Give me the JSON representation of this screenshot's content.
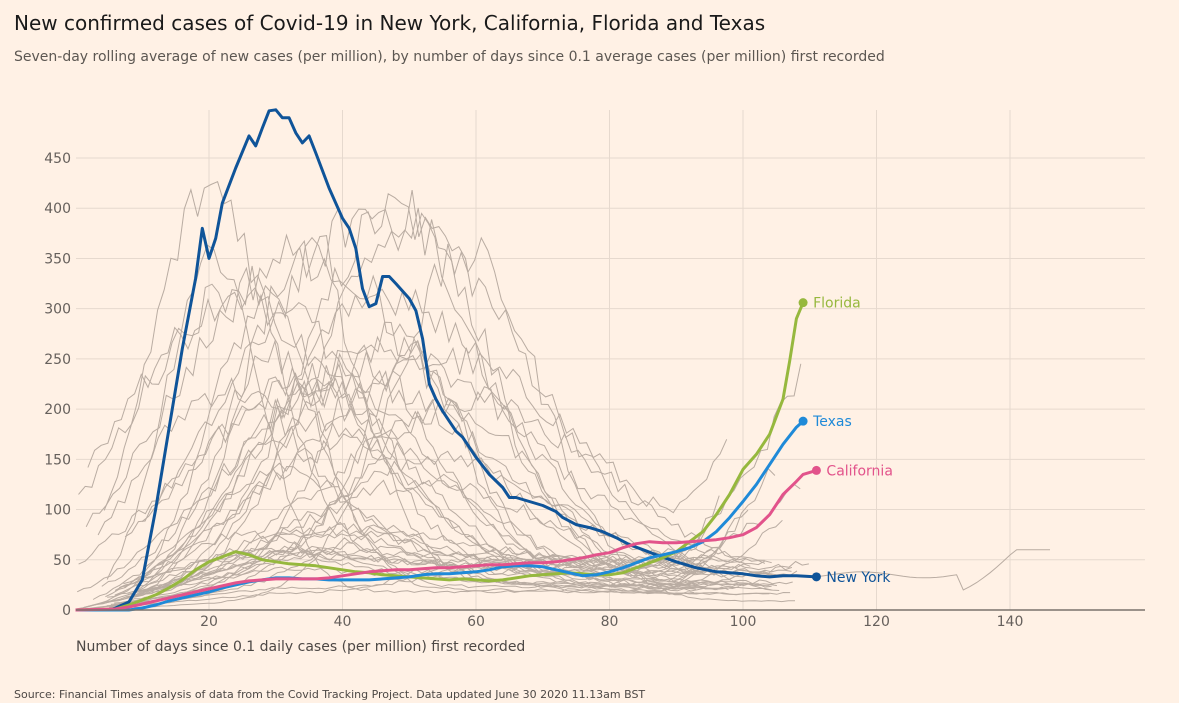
{
  "title": "New confirmed cases of Covid-19 in New York, California, Florida and Texas",
  "subtitle": "Seven-day rolling average of new cases (per million), by number of days since 0.1 average cases (per million) first recorded",
  "source": "Source: Financial Times analysis of data from the Covid Tracking Project. Data updated June 30 2020 11.13am BST",
  "chart_data": {
    "type": "line",
    "title": "New confirmed cases of Covid-19 in New York, California, Florida and Texas",
    "xlabel": "Number of days since 0.1 daily cases (per million) first recorded",
    "ylabel": "",
    "xlim": [
      0,
      160
    ],
    "ylim": [
      0,
      500
    ],
    "x_ticks": [
      "20",
      "40",
      "60",
      "80",
      "100",
      "120",
      "140"
    ],
    "x_tick_values": [
      20,
      40,
      60,
      80,
      100,
      120,
      140
    ],
    "y_ticks": [
      "0",
      "50",
      "100",
      "150",
      "200",
      "250",
      "300",
      "350",
      "400",
      "450"
    ],
    "y_tick_values": [
      0,
      50,
      100,
      150,
      200,
      250,
      300,
      350,
      400,
      450
    ],
    "grid": true,
    "series": [
      {
        "name": "New York",
        "color": "#0f5499",
        "label_dy": 0,
        "points": [
          [
            0,
            0
          ],
          [
            5,
            0
          ],
          [
            6,
            2
          ],
          [
            8,
            8
          ],
          [
            10,
            30
          ],
          [
            12,
            100
          ],
          [
            14,
            180
          ],
          [
            16,
            260
          ],
          [
            18,
            330
          ],
          [
            19,
            380
          ],
          [
            20,
            350
          ],
          [
            21,
            370
          ],
          [
            22,
            405
          ],
          [
            24,
            440
          ],
          [
            26,
            472
          ],
          [
            27,
            462
          ],
          [
            28,
            480
          ],
          [
            29,
            497
          ],
          [
            30,
            498
          ],
          [
            31,
            490
          ],
          [
            32,
            490
          ],
          [
            33,
            475
          ],
          [
            34,
            465
          ],
          [
            35,
            472
          ],
          [
            36,
            455
          ],
          [
            38,
            420
          ],
          [
            40,
            390
          ],
          [
            41,
            380
          ],
          [
            42,
            360
          ],
          [
            43,
            320
          ],
          [
            44,
            302
          ],
          [
            45,
            305
          ],
          [
            46,
            332
          ],
          [
            47,
            332
          ],
          [
            48,
            325
          ],
          [
            50,
            310
          ],
          [
            51,
            298
          ],
          [
            52,
            270
          ],
          [
            53,
            225
          ],
          [
            54,
            210
          ],
          [
            55,
            198
          ],
          [
            56,
            188
          ],
          [
            57,
            178
          ],
          [
            58,
            172
          ],
          [
            60,
            152
          ],
          [
            62,
            135
          ],
          [
            64,
            122
          ],
          [
            65,
            112
          ],
          [
            66,
            112
          ],
          [
            68,
            108
          ],
          [
            70,
            104
          ],
          [
            72,
            98
          ],
          [
            73,
            92
          ],
          [
            75,
            85
          ],
          [
            77,
            82
          ],
          [
            79,
            78
          ],
          [
            81,
            72
          ],
          [
            83,
            65
          ],
          [
            85,
            60
          ],
          [
            87,
            55
          ],
          [
            90,
            48
          ],
          [
            93,
            42
          ],
          [
            96,
            38
          ],
          [
            100,
            36
          ],
          [
            102,
            34
          ],
          [
            104,
            33
          ],
          [
            106,
            34
          ],
          [
            108,
            34
          ],
          [
            111,
            33
          ]
        ]
      },
      {
        "name": "Florida",
        "color": "#96b83e",
        "label_dy": 0,
        "points": [
          [
            0,
            0
          ],
          [
            6,
            1
          ],
          [
            8,
            5
          ],
          [
            10,
            10
          ],
          [
            12,
            15
          ],
          [
            14,
            22
          ],
          [
            16,
            30
          ],
          [
            18,
            40
          ],
          [
            20,
            48
          ],
          [
            22,
            53
          ],
          [
            24,
            58
          ],
          [
            26,
            55
          ],
          [
            28,
            50
          ],
          [
            30,
            48
          ],
          [
            32,
            46
          ],
          [
            34,
            45
          ],
          [
            36,
            44
          ],
          [
            38,
            42
          ],
          [
            40,
            40
          ],
          [
            42,
            38
          ],
          [
            44,
            37
          ],
          [
            46,
            35
          ],
          [
            48,
            34
          ],
          [
            50,
            33
          ],
          [
            52,
            32
          ],
          [
            54,
            31
          ],
          [
            56,
            30
          ],
          [
            58,
            31
          ],
          [
            60,
            30
          ],
          [
            62,
            29
          ],
          [
            64,
            30
          ],
          [
            66,
            32
          ],
          [
            68,
            34
          ],
          [
            70,
            35
          ],
          [
            72,
            36
          ],
          [
            74,
            37
          ],
          [
            76,
            36
          ],
          [
            78,
            35
          ],
          [
            80,
            35
          ],
          [
            82,
            37
          ],
          [
            84,
            42
          ],
          [
            86,
            47
          ],
          [
            88,
            52
          ],
          [
            90,
            58
          ],
          [
            92,
            68
          ],
          [
            94,
            78
          ],
          [
            96,
            95
          ],
          [
            98,
            115
          ],
          [
            100,
            140
          ],
          [
            102,
            155
          ],
          [
            104,
            175
          ],
          [
            106,
            210
          ],
          [
            107,
            248
          ],
          [
            108,
            290
          ],
          [
            109,
            306
          ]
        ]
      },
      {
        "name": "Texas",
        "color": "#1f8ad8",
        "label_dy": 0,
        "points": [
          [
            0,
            0
          ],
          [
            8,
            0
          ],
          [
            10,
            2
          ],
          [
            12,
            5
          ],
          [
            14,
            9
          ],
          [
            16,
            12
          ],
          [
            18,
            15
          ],
          [
            20,
            18
          ],
          [
            22,
            22
          ],
          [
            24,
            25
          ],
          [
            26,
            28
          ],
          [
            28,
            30
          ],
          [
            30,
            32
          ],
          [
            32,
            32
          ],
          [
            34,
            31
          ],
          [
            36,
            31
          ],
          [
            38,
            30
          ],
          [
            40,
            30
          ],
          [
            42,
            30
          ],
          [
            44,
            30
          ],
          [
            46,
            31
          ],
          [
            48,
            32
          ],
          [
            50,
            33
          ],
          [
            52,
            35
          ],
          [
            54,
            36
          ],
          [
            56,
            36
          ],
          [
            58,
            37
          ],
          [
            60,
            38
          ],
          [
            62,
            40
          ],
          [
            64,
            43
          ],
          [
            66,
            44
          ],
          [
            68,
            44
          ],
          [
            70,
            43
          ],
          [
            72,
            40
          ],
          [
            74,
            37
          ],
          [
            76,
            34
          ],
          [
            78,
            35
          ],
          [
            80,
            38
          ],
          [
            82,
            42
          ],
          [
            84,
            47
          ],
          [
            86,
            52
          ],
          [
            88,
            55
          ],
          [
            90,
            58
          ],
          [
            92,
            62
          ],
          [
            94,
            68
          ],
          [
            96,
            78
          ],
          [
            98,
            92
          ],
          [
            100,
            108
          ],
          [
            102,
            125
          ],
          [
            104,
            145
          ],
          [
            106,
            165
          ],
          [
            108,
            182
          ],
          [
            109,
            188
          ]
        ]
      },
      {
        "name": "California",
        "color": "#e2538b",
        "label_dy": 0,
        "points": [
          [
            0,
            0
          ],
          [
            6,
            1
          ],
          [
            8,
            3
          ],
          [
            10,
            6
          ],
          [
            12,
            9
          ],
          [
            14,
            12
          ],
          [
            16,
            15
          ],
          [
            18,
            18
          ],
          [
            20,
            21
          ],
          [
            22,
            24
          ],
          [
            24,
            27
          ],
          [
            26,
            29
          ],
          [
            28,
            30
          ],
          [
            30,
            31
          ],
          [
            32,
            31
          ],
          [
            34,
            31
          ],
          [
            36,
            31
          ],
          [
            38,
            32
          ],
          [
            40,
            34
          ],
          [
            42,
            36
          ],
          [
            44,
            38
          ],
          [
            46,
            39
          ],
          [
            48,
            40
          ],
          [
            50,
            40
          ],
          [
            52,
            41
          ],
          [
            54,
            42
          ],
          [
            56,
            42
          ],
          [
            58,
            43
          ],
          [
            60,
            44
          ],
          [
            62,
            45
          ],
          [
            64,
            45
          ],
          [
            66,
            46
          ],
          [
            68,
            47
          ],
          [
            70,
            47
          ],
          [
            72,
            48
          ],
          [
            74,
            50
          ],
          [
            76,
            52
          ],
          [
            78,
            55
          ],
          [
            80,
            57
          ],
          [
            82,
            62
          ],
          [
            84,
            66
          ],
          [
            86,
            68
          ],
          [
            88,
            67
          ],
          [
            90,
            67
          ],
          [
            92,
            68
          ],
          [
            94,
            69
          ],
          [
            96,
            70
          ],
          [
            98,
            72
          ],
          [
            100,
            75
          ],
          [
            102,
            82
          ],
          [
            104,
            95
          ],
          [
            106,
            115
          ],
          [
            108,
            128
          ],
          [
            109,
            135
          ],
          [
            111,
            139
          ]
        ]
      }
    ]
  }
}
